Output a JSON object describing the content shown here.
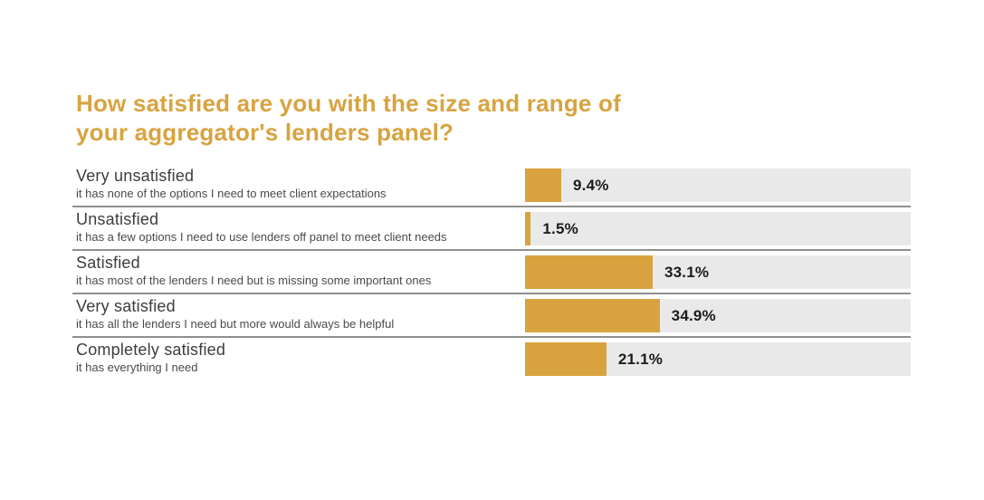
{
  "title": {
    "line1": "How satisfied are you with the size and range of",
    "line2": "your aggregator's lenders panel?"
  },
  "colors": {
    "accent_gold": "#D8A33F",
    "track_gray": "#E9E9E9",
    "divider_gray": "#8f8f8f",
    "value_text": "#1b1b1b",
    "label_text": "#3d3d3d"
  },
  "chart_data": {
    "type": "bar",
    "orientation": "horizontal",
    "title": "How satisfied are you with the size and range of your aggregator's lenders panel?",
    "xlim": [
      0,
      100
    ],
    "grid": false,
    "legend": false,
    "categories": [
      "Very unsatisfied",
      "Unsatisfied",
      "Satisfied",
      "Very satisfied",
      "Completely satisfied"
    ],
    "descriptions": [
      "it has none of the options I need to meet client expectations",
      "it has a few options I need to use lenders off panel to meet client needs",
      "it has most of the lenders I need but is missing some important ones",
      "it has all the lenders I need but more would always be helpful",
      "it has everything I need"
    ],
    "values": [
      9.4,
      1.5,
      33.1,
      34.9,
      21.1
    ],
    "value_labels": [
      "9.4%",
      "1.5%",
      "33.1%",
      "34.9%",
      "21.1%"
    ]
  }
}
